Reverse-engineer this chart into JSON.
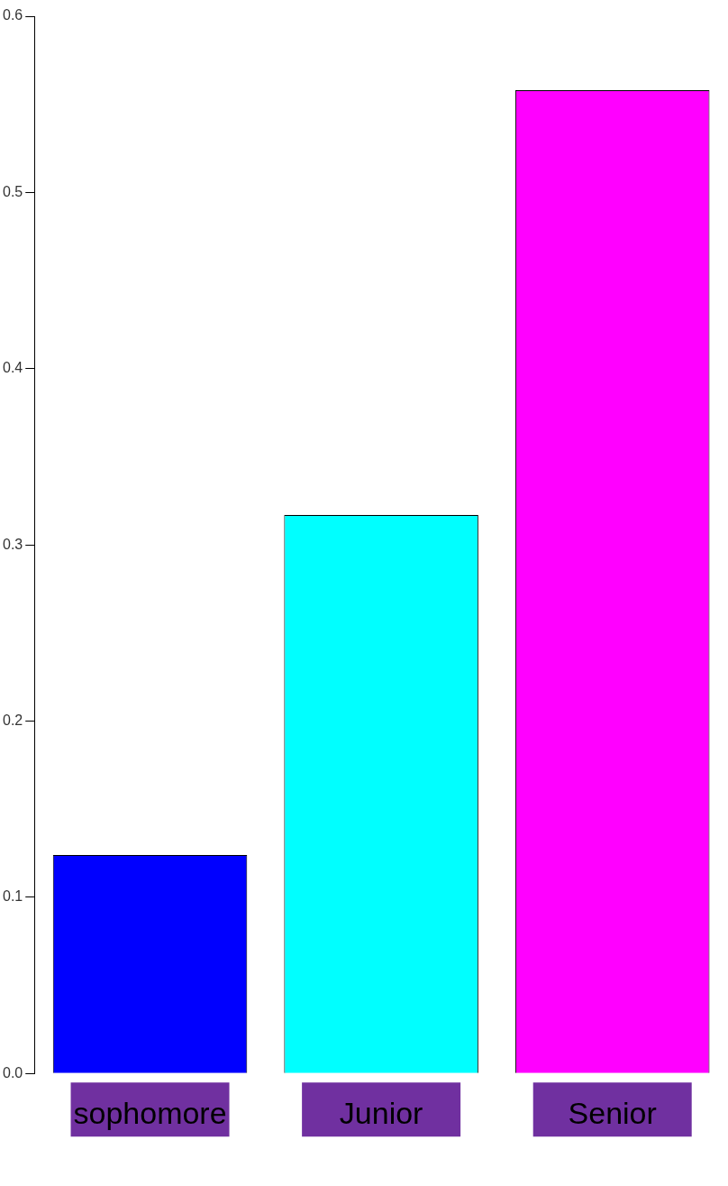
{
  "chart_data": {
    "type": "bar",
    "categories": [
      "sophomore",
      "Junior",
      "Senior"
    ],
    "values": [
      0.124,
      0.317,
      0.558
    ],
    "colors": [
      "#0000ff",
      "#00ffff",
      "#ff00ff"
    ],
    "ylim": [
      0,
      0.6
    ],
    "yticks": [
      {
        "value": 0,
        "label": "0.0"
      },
      0.1,
      0.2,
      0.3,
      0.4,
      0.5,
      0.6
    ]
  }
}
